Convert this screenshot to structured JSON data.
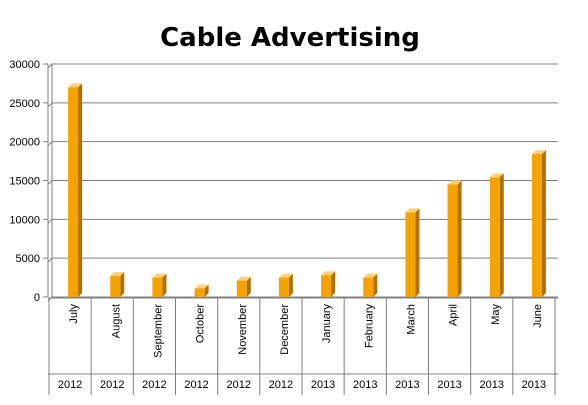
{
  "chart_data": {
    "type": "bar",
    "title": "Cable Advertising",
    "xlabel": "",
    "ylabel": "",
    "ylim": [
      0,
      30000
    ],
    "yticks": [
      0,
      5000,
      10000,
      15000,
      20000,
      25000,
      30000
    ],
    "ytick_labels": [
      "0",
      "5000",
      "10000",
      "15000",
      "20000",
      "25000",
      "30000"
    ],
    "grid": true,
    "categories": [
      "July",
      "August",
      "September",
      "October",
      "November",
      "December",
      "January",
      "February",
      "March",
      "April",
      "May",
      "June"
    ],
    "years": [
      "2012",
      "2012",
      "2012",
      "2012",
      "2012",
      "2012",
      "2013",
      "2013",
      "2013",
      "2013",
      "2013",
      "2013"
    ],
    "values": [
      27000,
      2700,
      2500,
      1100,
      2100,
      2500,
      2800,
      2500,
      10900,
      14500,
      15400,
      18400
    ],
    "colors": {
      "bar_front": "#f5a300",
      "bar_side": "#b36f00",
      "bar_top": "#ffd27a",
      "grid": "#808080",
      "axis": "#808080"
    }
  }
}
